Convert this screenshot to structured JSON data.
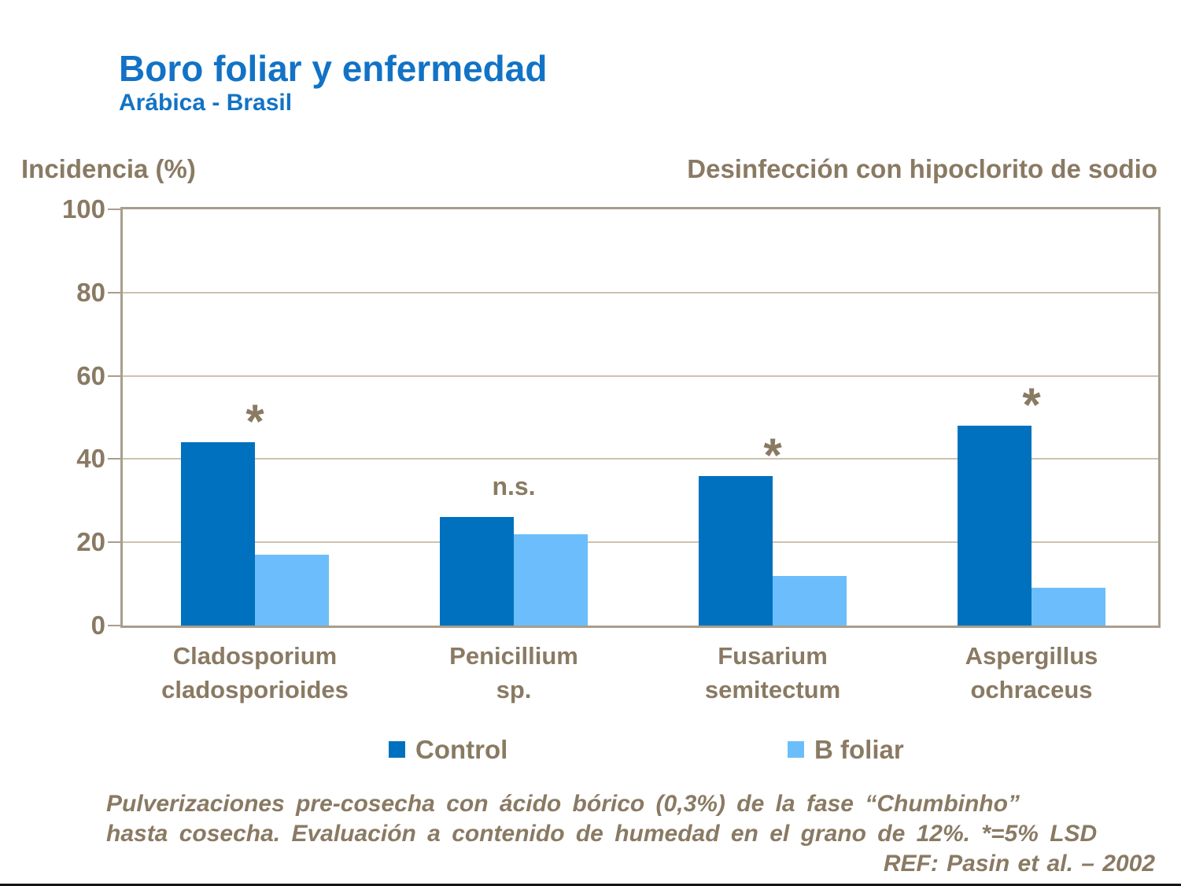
{
  "header": {
    "title": "Boro foliar y enfermedad",
    "subtitle": "Arábica - Brasil"
  },
  "y_axis_title": "Incidencia (%)",
  "chart_note": "Desinfección con hipoclorito de sodio",
  "chart_data": {
    "type": "bar",
    "categories": [
      "Cladosporium\ncladosporioides",
      "Penicillium\nsp.",
      "Fusarium\nsemitectum",
      "Aspergillus\nochraceus"
    ],
    "series": [
      {
        "name": "Control",
        "color": "#0071BE",
        "values": [
          44,
          26,
          36,
          48
        ]
      },
      {
        "name": "B foliar",
        "color": "#6BBEFB",
        "values": [
          17,
          22,
          12,
          9
        ]
      }
    ],
    "annotations": [
      "*",
      "n.s.",
      "*",
      "*"
    ],
    "title": "",
    "xlabel": "",
    "ylabel": "Incidencia (%)",
    "ylim": [
      0,
      100
    ],
    "yticks": [
      0,
      20,
      40,
      60,
      80,
      100
    ],
    "grid": true,
    "legend_position": "bottom"
  },
  "footer": {
    "lines": [
      "Pulverizaciones pre-cosecha con ácido bórico (0,3%) de la fase “Chumbinho”",
      "hasta cosecha. Evaluación a contenido de humedad en el grano de 12%. *=5% LSD",
      "REF: Pasin et al. – 2002"
    ]
  },
  "colors": {
    "title_blue": "#1273C6",
    "text_brown": "#8A7A63",
    "bar_control": "#0071BE",
    "bar_bfoliar": "#6BBEFB",
    "plot_border": "#A89E8C",
    "gridline": "#CCC2B0"
  }
}
